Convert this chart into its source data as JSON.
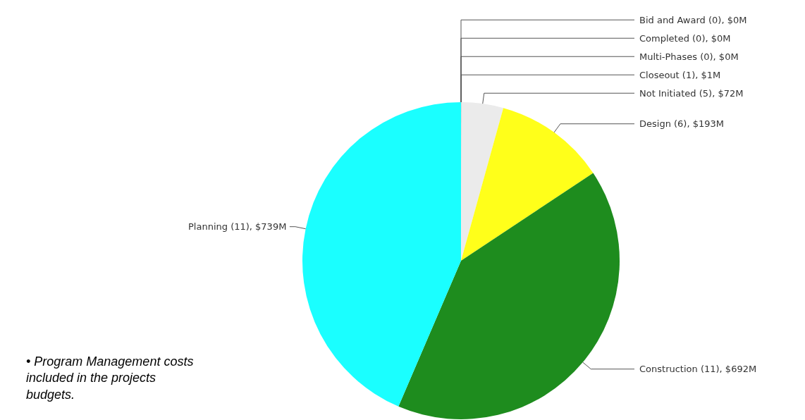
{
  "chart_data": {
    "type": "pie",
    "categories": [
      "Bid and Award (0), $0M",
      "Completed (0), $0M",
      "Multi-Phases (0), $0M",
      "Closeout (1), $1M",
      "Not Initiated (5), $72M",
      "Design (6), $193M",
      "Construction (11), $692M",
      "Planning (11), $739M"
    ],
    "values": [
      0,
      0,
      0,
      1,
      72,
      193,
      692,
      739
    ],
    "colors": [
      "#cccccc",
      "#cccccc",
      "#cccccc",
      "#cccccc",
      "#ebebeb",
      "#ffff1a",
      "#1e8c1e",
      "#1affff"
    ],
    "legend": false,
    "annotations": [
      "• Program Management costs included in the projects budgets."
    ]
  }
}
